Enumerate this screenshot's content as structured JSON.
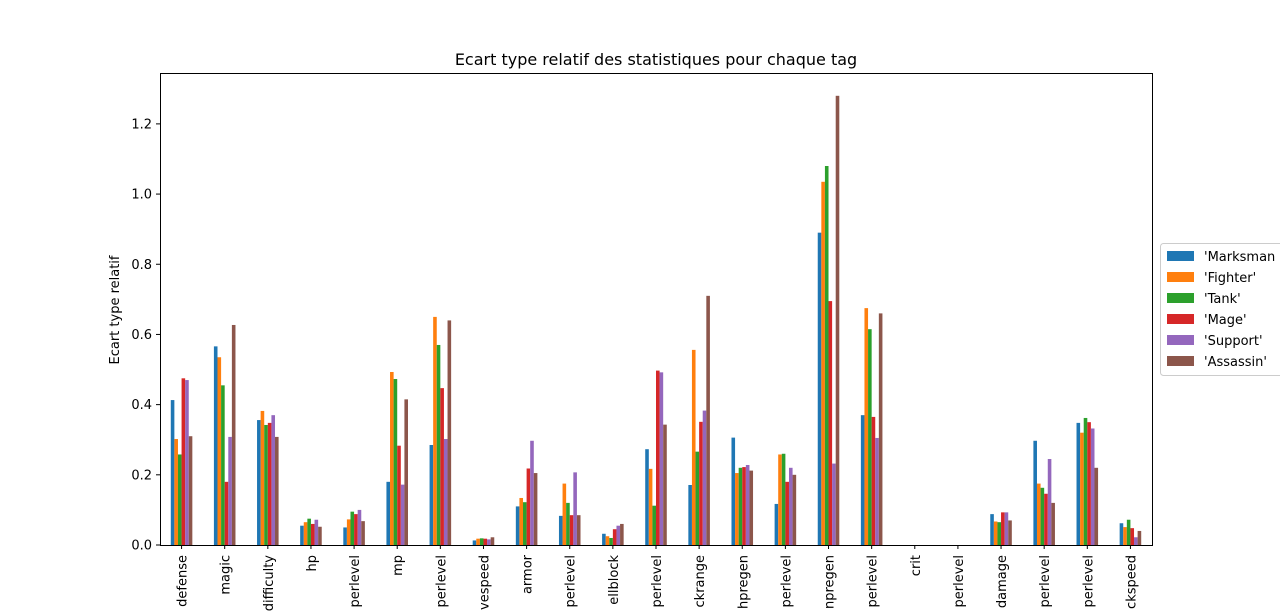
{
  "chart_data": {
    "type": "bar",
    "title": "Ecart type relatif des statistiques pour chaque tag",
    "xlabel": "",
    "ylabel": "Ecart type relatif",
    "ylim": [
      0,
      1.345
    ],
    "yticks": [
      0.0,
      0.2,
      0.4,
      0.6,
      0.8,
      1.0,
      1.2
    ],
    "grid": false,
    "legend_position": "right",
    "categories": [
      "defense",
      "magic",
      "difficulty",
      "hp",
      "perlevel",
      "mp",
      "perlevel",
      "vespeed",
      "armor",
      "perlevel",
      "ellblock",
      "perlevel",
      "ckrange",
      "hpregen",
      "perlevel",
      "npregen",
      "perlevel",
      "crit",
      "perlevel",
      "damage",
      "perlevel",
      "perlevel",
      "ckspeed"
    ],
    "series": [
      {
        "name": "'Marksman",
        "color": "#1f77b4",
        "values": [
          0.413,
          0.566,
          0.356,
          0.055,
          0.05,
          0.18,
          0.285,
          0.013,
          0.11,
          0.083,
          0.032,
          0.273,
          0.171,
          0.306,
          0.117,
          0.89,
          0.37,
          0.0,
          0.0,
          0.088,
          0.297,
          0.348,
          0.062
        ]
      },
      {
        "name": "'Fighter'",
        "color": "#ff7f0e",
        "values": [
          0.302,
          0.535,
          0.382,
          0.065,
          0.073,
          0.493,
          0.65,
          0.018,
          0.134,
          0.175,
          0.025,
          0.217,
          0.556,
          0.205,
          0.258,
          1.035,
          0.675,
          0.0,
          0.0,
          0.067,
          0.175,
          0.32,
          0.051
        ]
      },
      {
        "name": "'Tank'",
        "color": "#2ca02c",
        "values": [
          0.258,
          0.455,
          0.342,
          0.075,
          0.095,
          0.473,
          0.57,
          0.019,
          0.122,
          0.12,
          0.02,
          0.112,
          0.266,
          0.22,
          0.26,
          1.08,
          0.615,
          0.0,
          0.0,
          0.065,
          0.163,
          0.362,
          0.072
        ]
      },
      {
        "name": "'Mage'",
        "color": "#d62728",
        "values": [
          0.475,
          0.18,
          0.348,
          0.06,
          0.088,
          0.283,
          0.447,
          0.018,
          0.218,
          0.085,
          0.045,
          0.497,
          0.351,
          0.222,
          0.18,
          0.695,
          0.365,
          0.0,
          0.0,
          0.093,
          0.146,
          0.35,
          0.048
        ]
      },
      {
        "name": "'Support'",
        "color": "#9467bd",
        "values": [
          0.47,
          0.308,
          0.37,
          0.072,
          0.1,
          0.172,
          0.302,
          0.016,
          0.297,
          0.207,
          0.055,
          0.492,
          0.383,
          0.228,
          0.22,
          0.232,
          0.305,
          0.0,
          0.0,
          0.093,
          0.245,
          0.332,
          0.022
        ]
      },
      {
        "name": "'Assassin'",
        "color": "#8c564b",
        "values": [
          0.31,
          0.627,
          0.308,
          0.052,
          0.068,
          0.415,
          0.64,
          0.022,
          0.205,
          0.085,
          0.06,
          0.343,
          0.71,
          0.212,
          0.2,
          1.28,
          0.66,
          0.0,
          0.0,
          0.07,
          0.12,
          0.22,
          0.04
        ]
      }
    ]
  }
}
